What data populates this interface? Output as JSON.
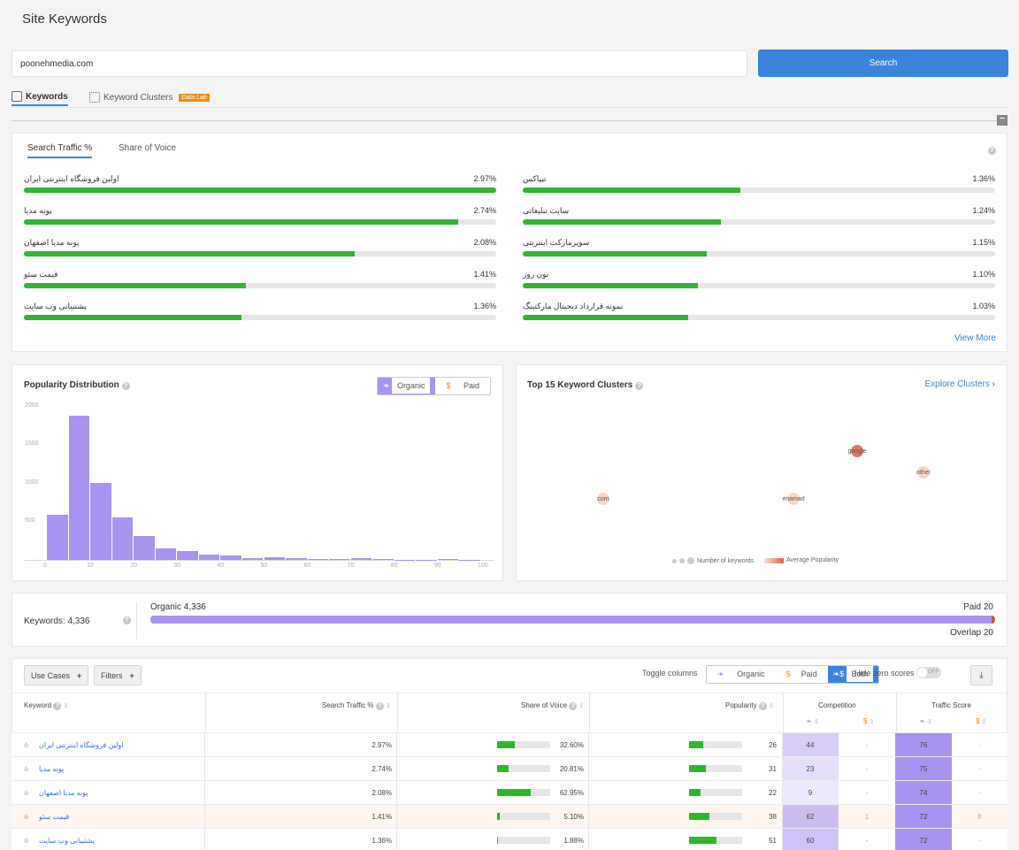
{
  "page": {
    "title": "Site Keywords"
  },
  "search": {
    "value": "poonehmedia.com",
    "button": "Search"
  },
  "top_tabs": [
    {
      "label": "Keywords"
    },
    {
      "label": "Keyword Clusters",
      "badge": "Data Lab"
    }
  ],
  "traffic_tabs": [
    "Search Traffic %",
    "Share of Voice"
  ],
  "traffic_keywords_left": [
    {
      "name": "اولین فروشگاه اینترنتی ایران",
      "pct": "2.97%",
      "fill": 100
    },
    {
      "name": "پونه مدیا",
      "pct": "2.74%",
      "fill": 92
    },
    {
      "name": "پونه مدیا اصفهان",
      "pct": "2.08%",
      "fill": 70
    },
    {
      "name": "قیمت سئو",
      "pct": "1.41%",
      "fill": 47
    },
    {
      "name": "پشتیبانی وب سایت",
      "pct": "1.36%",
      "fill": 46
    }
  ],
  "traffic_keywords_right": [
    {
      "name": "تیپاکس",
      "pct": "1.36%",
      "fill": 46
    },
    {
      "name": "سایت تبلیغاتی",
      "pct": "1.24%",
      "fill": 42
    },
    {
      "name": "سوپرمارکت اینترنتی",
      "pct": "1.15%",
      "fill": 39
    },
    {
      "name": "نون روز",
      "pct": "1.10%",
      "fill": 37
    },
    {
      "name": "نمونه قرارداد دیجیتال مارکتینگ",
      "pct": "1.03%",
      "fill": 35
    }
  ],
  "view_more": "View More",
  "popularity": {
    "title": "Popularity Distribution",
    "toggle": [
      "Organic",
      "Paid"
    ]
  },
  "chart_data": {
    "type": "bar",
    "title": "Popularity Distribution",
    "xlim": [
      0,
      100
    ],
    "ylim": [
      0,
      2000
    ],
    "x_ticks": [
      "0",
      "10",
      "20",
      "30",
      "40",
      "50",
      "60",
      "70",
      "80",
      "90",
      "100"
    ],
    "y_ticks": [
      "2000",
      "1500",
      "1000",
      "500"
    ],
    "bin_width": 5,
    "bins_start": [
      0,
      5,
      10,
      15,
      20,
      25,
      30,
      35,
      40,
      45,
      50,
      55,
      60,
      65,
      70,
      75,
      80,
      85,
      90,
      95
    ],
    "values": [
      590,
      1880,
      1010,
      560,
      310,
      150,
      110,
      70,
      55,
      25,
      35,
      20,
      15,
      15,
      20,
      10,
      5,
      5,
      15,
      5
    ],
    "color": "#a993f0"
  },
  "clusters": {
    "title": "Top 15 Keyword Clusters",
    "explore": "Explore Clusters",
    "bubbles": [
      {
        "label": "google",
        "color": "#d9634e",
        "opacity": 0.85
      },
      {
        "label": "other",
        "color": "#f6c6a8",
        "opacity": 0.7
      },
      {
        "label": "com",
        "color": "#f6c6a8",
        "opacity": 0.7
      },
      {
        "label": "enamad",
        "color": "#f6c6a8",
        "opacity": 0.7
      }
    ],
    "legend_count": "Number of keywords",
    "legend_pop": "Average Popularity"
  },
  "summary": {
    "keywords_label": "Keywords: 4,336",
    "organic_label": "Organic 4,336",
    "paid_label": "Paid 20",
    "overlap_label": "Overlap 20",
    "organic_share": 0.9954
  },
  "toolbar": {
    "use_cases": "Use Cases",
    "filters": "Filters",
    "toggle_columns": "Toggle columns",
    "col_toggle": [
      "Organic",
      "Paid",
      "Both"
    ],
    "hide_zero": "Hide zero scores",
    "off": "OFF"
  },
  "table": {
    "headers": {
      "keyword": "Keyword",
      "traffic": "Search Traffic %",
      "sov": "Share of Voice",
      "popularity": "Popularity",
      "competition": "Competition",
      "traffic_score": "Traffic Score"
    },
    "rows": [
      {
        "keyword": "اولین فروشگاه اینترنتی ایران",
        "traffic": "2.97%",
        "sov": "32.60%",
        "sov_fill": 33,
        "pop": "26",
        "pop_fill": 26,
        "comp_org": "44",
        "comp_paid": "-",
        "ts_org": "76",
        "ts_paid": "-"
      },
      {
        "keyword": "پونه مدیا",
        "traffic": "2.74%",
        "sov": "20.81%",
        "sov_fill": 21,
        "pop": "31",
        "pop_fill": 31,
        "comp_org": "23",
        "comp_paid": "-",
        "ts_org": "75",
        "ts_paid": "-"
      },
      {
        "keyword": "پونه مدیا اصفهان",
        "traffic": "2.08%",
        "sov": "62.95%",
        "sov_fill": 63,
        "pop": "22",
        "pop_fill": 22,
        "comp_org": "9",
        "comp_paid": "-",
        "ts_org": "74",
        "ts_paid": "-"
      },
      {
        "keyword": "قیمت سئو",
        "traffic": "1.41%",
        "sov": "5.10%",
        "sov_fill": 5,
        "pop": "38",
        "pop_fill": 38,
        "comp_org": "62",
        "comp_paid": "1",
        "ts_org": "72",
        "ts_paid": "8"
      },
      {
        "keyword": "پشتیبانی وب سایت",
        "traffic": "1.36%",
        "sov": "1.88%",
        "sov_fill": 2,
        "pop": "51",
        "pop_fill": 51,
        "comp_org": "60",
        "comp_paid": "-",
        "ts_org": "72",
        "ts_paid": "-"
      }
    ]
  }
}
